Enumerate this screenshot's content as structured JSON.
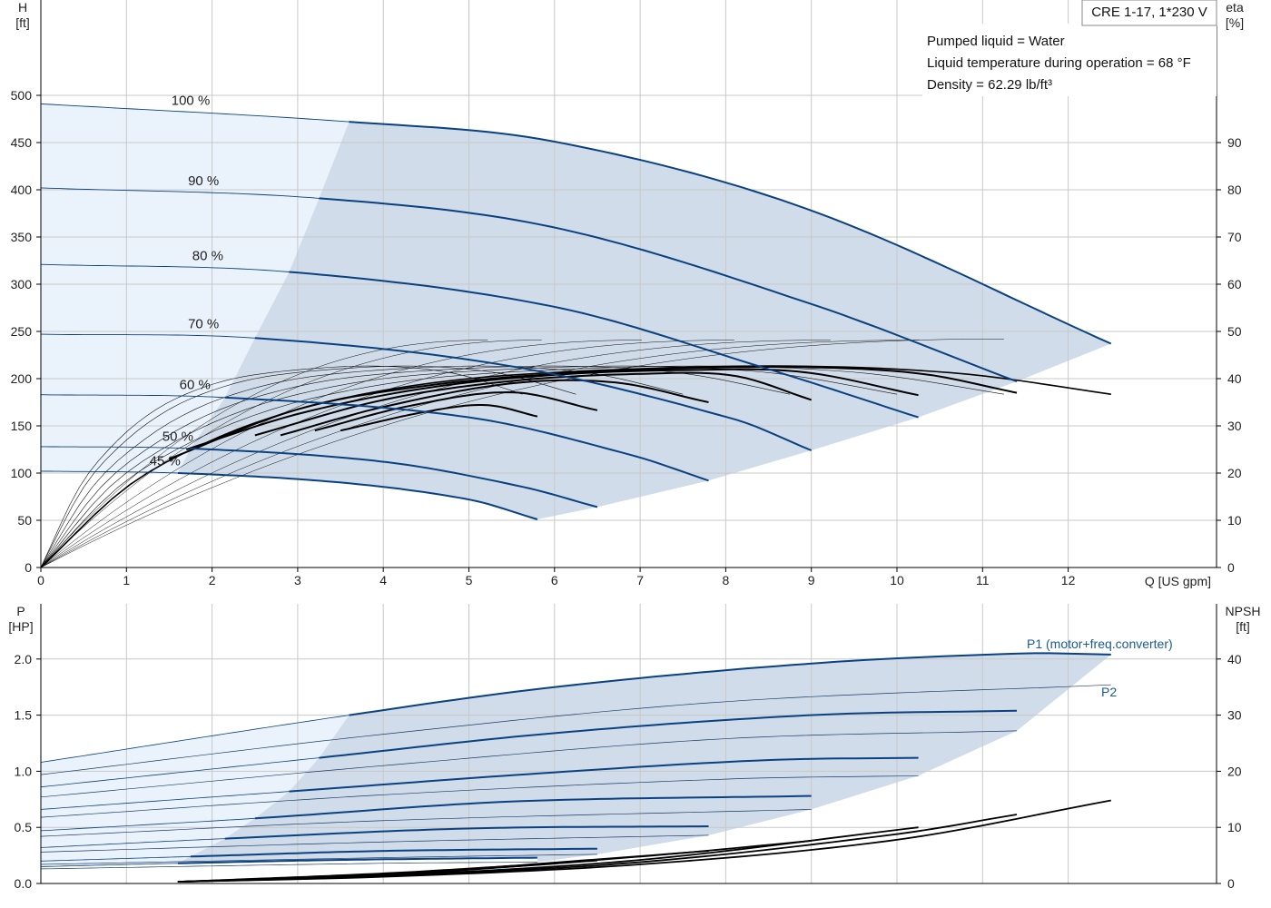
{
  "chart_data": [
    {
      "type": "line",
      "name_box": "CRE 1-17, 1*230 V",
      "info_lines": [
        "Pumped liquid = Water",
        "Liquid temperature during operation = 68 °F",
        "Density = 62.29 lb/ft³"
      ],
      "x_axis": {
        "label": "Q [US gpm]",
        "range": [
          0,
          13
        ],
        "ticks": [
          0,
          1,
          2,
          3,
          4,
          5,
          6,
          7,
          8,
          9,
          10,
          11,
          12
        ]
      },
      "y_left": {
        "label_lines": [
          "H",
          "[ft]"
        ],
        "range": [
          0,
          500
        ],
        "ticks": [
          0,
          50,
          100,
          150,
          200,
          250,
          300,
          350,
          400,
          450,
          500
        ]
      },
      "y_right": {
        "label_lines": [
          "eta",
          "[%]"
        ],
        "range": [
          0,
          100
        ],
        "ticks": [
          0,
          10,
          20,
          30,
          40,
          50,
          60,
          70,
          80,
          90
        ]
      },
      "speed_labels": [
        "100 %",
        "90 %",
        "80 %",
        "70 %",
        "60 %",
        "50 %",
        "45 %"
      ],
      "speed_fractions": [
        1.0,
        0.9,
        0.8,
        0.7,
        0.6,
        0.5,
        0.45
      ],
      "head_curves_ft": [
        {
          "speed": "100 %",
          "points": [
            [
              0,
              491
            ],
            [
              3.6,
              472
            ],
            [
              6,
              451
            ],
            [
              9,
              378
            ],
            [
              12.5,
              237
            ]
          ],
          "end_q": 12.5
        },
        {
          "speed": "90 %",
          "points": [
            [
              0,
              402
            ],
            [
              3.25,
              391
            ],
            [
              6,
              360
            ],
            [
              9,
              279
            ],
            [
              11.4,
              197
            ]
          ],
          "end_q": 11.4
        },
        {
          "speed": "80 %",
          "points": [
            [
              0,
              321
            ],
            [
              2.9,
              313
            ],
            [
              6,
              276
            ],
            [
              8.5,
              210
            ],
            [
              10.25,
              159
            ]
          ],
          "end_q": 10.25
        },
        {
          "speed": "70 %",
          "points": [
            [
              0,
              247
            ],
            [
              2.5,
              243
            ],
            [
              5.5,
              213
            ],
            [
              8.1,
              157
            ],
            [
              9.0,
              124
            ]
          ],
          "end_q": 9.0
        },
        {
          "speed": "60 %",
          "points": [
            [
              0,
              183
            ],
            [
              2.15,
              180
            ],
            [
              5,
              159
            ],
            [
              6.9,
              119
            ],
            [
              7.8,
              92
            ]
          ],
          "end_q": 7.8
        },
        {
          "speed": "50 %",
          "points": [
            [
              0,
              128
            ],
            [
              1.75,
              126
            ],
            [
              4,
              112
            ],
            [
              5.6,
              86
            ],
            [
              6.5,
              64
            ]
          ],
          "end_q": 6.5
        },
        {
          "speed": "45 %",
          "points": [
            [
              0,
              102
            ],
            [
              1.6,
              100
            ],
            [
              3.5,
              90
            ],
            [
              5,
              72
            ],
            [
              5.8,
              51
            ]
          ],
          "end_q": 5.8
        }
      ],
      "efficiency_curves_pct": [
        {
          "speed": "100 %",
          "points": [
            [
              0,
              0
            ],
            [
              1,
              17
            ],
            [
              2,
              27
            ],
            [
              3,
              33.5
            ],
            [
              4,
              37.5
            ],
            [
              5,
              40
            ],
            [
              6,
              41.3
            ],
            [
              7,
              42.1
            ],
            [
              8,
              42.6
            ],
            [
              9,
              42.6
            ],
            [
              10,
              42
            ],
            [
              11,
              40.6
            ],
            [
              12.5,
              36.7
            ]
          ]
        },
        {
          "speed": "90 %",
          "points": [
            [
              1.5,
              23
            ],
            [
              3,
              33.5
            ],
            [
              4.5,
              38.5
            ],
            [
              6,
              41
            ],
            [
              7.5,
              42.2
            ],
            [
              9,
              42.4
            ],
            [
              10.3,
              41
            ],
            [
              11.4,
              37
            ]
          ]
        },
        {
          "speed": "80 %",
          "points": [
            [
              1.7,
              25
            ],
            [
              3,
              32.5
            ],
            [
              4.5,
              38
            ],
            [
              6,
              40.8
            ],
            [
              7.5,
              41.8
            ],
            [
              8.9,
              41.4
            ],
            [
              10.25,
              36.5
            ]
          ]
        },
        {
          "speed": "70 %",
          "points": [
            [
              2.5,
              28
            ],
            [
              4,
              35.5
            ],
            [
              5.5,
              39.5
            ],
            [
              7,
              41
            ],
            [
              8.1,
              40.6
            ],
            [
              9.0,
              35.5
            ]
          ]
        },
        {
          "speed": "60 %",
          "points": [
            [
              2.8,
              28
            ],
            [
              4,
              34
            ],
            [
              5.5,
              39
            ],
            [
              6.7,
              39.2
            ],
            [
              7.8,
              35
            ]
          ]
        },
        {
          "speed": "50 %",
          "points": [
            [
              3.2,
              29
            ],
            [
              4.3,
              34.2
            ],
            [
              5.5,
              37.1
            ],
            [
              6.5,
              33.3
            ]
          ]
        },
        {
          "speed": "45 %",
          "points": [
            [
              3.5,
              29
            ],
            [
              4.5,
              33
            ],
            [
              5.2,
              34.4
            ],
            [
              5.8,
              32
            ]
          ]
        }
      ],
      "reference_curves": "thin system curves from origin at each speed (head and efficiency)"
    },
    {
      "type": "line",
      "x_axis": {
        "range": [
          0,
          13
        ]
      },
      "y_left": {
        "label_lines": [
          "P",
          "[HP]"
        ],
        "range": [
          0,
          2.2
        ],
        "ticks": [
          "0.0",
          "0.5",
          "1.0",
          "1.5",
          "2.0"
        ]
      },
      "y_right": {
        "label_lines": [
          "NPSH",
          "[ft]"
        ],
        "range": [
          0,
          44
        ],
        "ticks": [
          0,
          10,
          20,
          30,
          40
        ]
      },
      "series_labels": {
        "p1": "P1 (motor+freq.converter)",
        "p2": "P2"
      },
      "p1_curves_hp": [
        {
          "speed": "100 %",
          "points": [
            [
              0,
              1.08
            ],
            [
              3.6,
              1.5
            ],
            [
              6,
              1.75
            ],
            [
              9,
              1.96
            ],
            [
              11.5,
              2.05
            ],
            [
              12.5,
              2.04
            ]
          ]
        },
        {
          "speed": "90 %",
          "points": [
            [
              0,
              0.86
            ],
            [
              3.25,
              1.12
            ],
            [
              6,
              1.34
            ],
            [
              9,
              1.5
            ],
            [
              11.4,
              1.54
            ]
          ]
        },
        {
          "speed": "80 %",
          "points": [
            [
              0,
              0.66
            ],
            [
              2.9,
              0.82
            ],
            [
              6,
              0.99
            ],
            [
              8.5,
              1.1
            ],
            [
              10.25,
              1.12
            ]
          ]
        },
        {
          "speed": "70 %",
          "points": [
            [
              0,
              0.47
            ],
            [
              2.5,
              0.58
            ],
            [
              5.5,
              0.73
            ],
            [
              9.0,
              0.78
            ]
          ]
        },
        {
          "speed": "60 %",
          "points": [
            [
              0,
              0.32
            ],
            [
              2.15,
              0.4
            ],
            [
              5,
              0.49
            ],
            [
              7.8,
              0.51
            ]
          ]
        },
        {
          "speed": "50 %",
          "points": [
            [
              0,
              0.2
            ],
            [
              1.75,
              0.24
            ],
            [
              4,
              0.29
            ],
            [
              6.5,
              0.31
            ]
          ]
        },
        {
          "speed": "45 %",
          "points": [
            [
              0,
              0.15
            ],
            [
              1.6,
              0.18
            ],
            [
              3.5,
              0.21
            ],
            [
              5.8,
              0.23
            ]
          ]
        }
      ],
      "p2_curves_hp": [
        {
          "speed": "100 %",
          "points": [
            [
              0,
              0.97
            ],
            [
              4,
              1.33
            ],
            [
              8,
              1.62
            ],
            [
              12.5,
              1.77
            ]
          ]
        },
        {
          "speed": "90 %",
          "points": [
            [
              0,
              0.77
            ],
            [
              4,
              1.05
            ],
            [
              8,
              1.29
            ],
            [
              11.4,
              1.36
            ]
          ]
        },
        {
          "speed": "80 %",
          "points": [
            [
              0,
              0.59
            ],
            [
              4,
              0.79
            ],
            [
              8,
              0.93
            ],
            [
              10.25,
              0.96
            ]
          ]
        },
        {
          "speed": "70 %",
          "points": [
            [
              0,
              0.42
            ],
            [
              4,
              0.56
            ],
            [
              9,
              0.66
            ]
          ]
        },
        {
          "speed": "60 %",
          "points": [
            [
              0,
              0.28
            ],
            [
              4,
              0.37
            ],
            [
              7.8,
              0.43
            ]
          ]
        },
        {
          "speed": "50 %",
          "points": [
            [
              0,
              0.17
            ],
            [
              4,
              0.23
            ],
            [
              6.5,
              0.26
            ]
          ]
        },
        {
          "speed": "45 %",
          "points": [
            [
              0,
              0.13
            ],
            [
              4,
              0.18
            ],
            [
              5.8,
              0.19
            ]
          ]
        }
      ],
      "npsh_curves_ft": [
        {
          "speed": "100 %",
          "points": [
            [
              1.6,
              0.3
            ],
            [
              4,
              1.2
            ],
            [
              7,
              3.4
            ],
            [
              10,
              7.8
            ],
            [
              12.5,
              14.8
            ]
          ]
        },
        {
          "speed": "90 %",
          "points": [
            [
              1.6,
              0.3
            ],
            [
              4,
              1.3
            ],
            [
              7,
              3.8
            ],
            [
              10,
              8.8
            ],
            [
              11.4,
              12.3
            ]
          ]
        },
        {
          "speed": "80 %",
          "points": [
            [
              1.6,
              0.3
            ],
            [
              4,
              1.4
            ],
            [
              7,
              4.2
            ],
            [
              10.25,
              10
            ]
          ]
        },
        {
          "speed": "70 %",
          "points": [
            [
              1.6,
              0.3
            ],
            [
              4,
              1.5
            ],
            [
              7,
              4.8
            ],
            [
              9.0,
              7.6
            ]
          ]
        },
        {
          "speed": "60 %",
          "points": [
            [
              1.6,
              0.3
            ],
            [
              4,
              1.6
            ],
            [
              6.5,
              4.3
            ],
            [
              7.8,
              5.8
            ]
          ]
        },
        {
          "speed": "50 %",
          "points": [
            [
              1.6,
              0.3
            ],
            [
              4,
              1.7
            ],
            [
              5.5,
              3
            ],
            [
              6.5,
              4.1
            ]
          ]
        },
        {
          "speed": "45 %",
          "points": [
            [
              1.6,
              0.3
            ],
            [
              4,
              1.8
            ],
            [
              5.8,
              3.4
            ]
          ]
        }
      ]
    }
  ],
  "colors": {
    "curve_blue": "#0a4180",
    "area_dark": "#d0dcea",
    "area_light": "#eaf3fc",
    "grid": "#c8c8c8",
    "black": "#000000"
  }
}
